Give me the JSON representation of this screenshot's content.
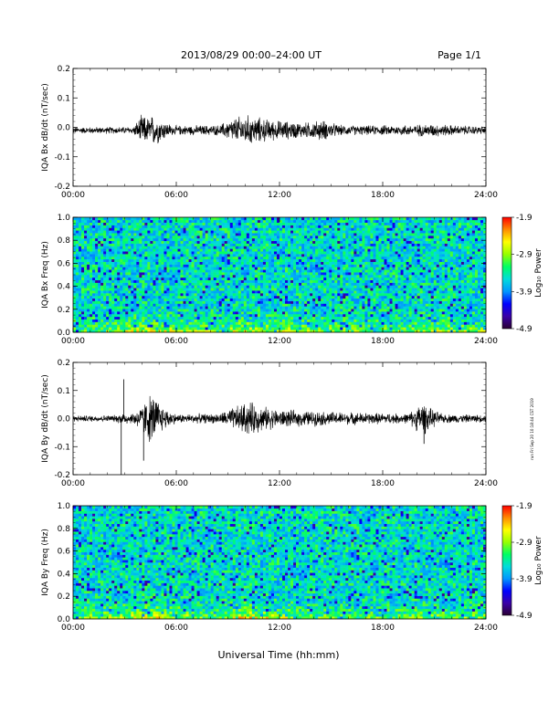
{
  "header": {
    "title": "2013/08/29  00:00–24:00 UT",
    "page": "Page 1/1"
  },
  "x_axis_title": "Universal Time (hh:mm)",
  "timestamp": "run Fri Sep 20 10:18:44 CST 2019",
  "colors": {
    "trace": "#000000",
    "colormap": [
      "#2a0033",
      "#3a00a8",
      "#0000ff",
      "#0096ff",
      "#00dcdc",
      "#00ff64",
      "#96ff00",
      "#ffff00",
      "#ff8c00",
      "#ff0000"
    ]
  },
  "chart_data": [
    {
      "type": "line",
      "ylabel": "IQA Bx dB/dt (nT/sec)",
      "xlim": [
        "00:00",
        "24:00"
      ],
      "x_ticks": [
        "00:00",
        "06:00",
        "12:00",
        "18:00",
        "24:00"
      ],
      "ylim": [
        -0.2,
        0.2
      ],
      "y_ticks": [
        "0.2",
        "0.1",
        "0.0",
        "-0.1",
        "-0.2"
      ],
      "grid": false,
      "envelope": {
        "hours": [
          0,
          3.5,
          4.0,
          4.3,
          4.7,
          5.2,
          5.8,
          8.5,
          9.2,
          10.0,
          10.8,
          11.5,
          12.5,
          13.5,
          14.5,
          15.5,
          17.0,
          19.0,
          21.0,
          22.5,
          24.0
        ],
        "half_width": [
          0.012,
          0.014,
          0.06,
          0.05,
          0.06,
          0.04,
          0.018,
          0.02,
          0.045,
          0.06,
          0.05,
          0.04,
          0.035,
          0.03,
          0.04,
          0.02,
          0.018,
          0.02,
          0.025,
          0.018,
          0.015
        ]
      },
      "baseline": -0.01
    },
    {
      "type": "heatmap",
      "ylabel": "IQA Bx Freq (Hz)",
      "xlim": [
        "00:00",
        "24:00"
      ],
      "x_ticks": [
        "00:00",
        "06:00",
        "12:00",
        "18:00",
        "24:00"
      ],
      "ylim": [
        0.0,
        1.0
      ],
      "y_ticks": [
        "1.0",
        "0.8",
        "0.6",
        "0.4",
        "0.2",
        "0.0"
      ],
      "colorbar": {
        "label": "Log₁₀ Power",
        "range": [
          -4.9,
          -1.9
        ],
        "ticks": [
          "-1.9",
          "-2.9",
          "-3.9",
          "-4.9"
        ]
      },
      "background_log_power": -3.5,
      "low_freq_enhancement": {
        "hours": [
          0,
          4.0,
          5.0,
          8.5,
          10.0,
          11.5,
          14.0,
          18.0,
          20.5,
          24.0
        ],
        "log_power": [
          -3.1,
          -2.6,
          -2.6,
          -3.0,
          -2.5,
          -2.7,
          -2.9,
          -3.0,
          -2.7,
          -2.9
        ]
      }
    },
    {
      "type": "line",
      "ylabel": "IQA By dB/dt (nT/sec)",
      "xlim": [
        "00:00",
        "24:00"
      ],
      "x_ticks": [
        "00:00",
        "06:00",
        "12:00",
        "18:00",
        "24:00"
      ],
      "ylim": [
        -0.2,
        0.2
      ],
      "y_ticks": [
        "0.2",
        "0.1",
        "0.0",
        "-0.1",
        "-0.2"
      ],
      "grid": false,
      "envelope": {
        "hours": [
          0,
          2.5,
          3.0,
          3.3,
          4.0,
          4.4,
          4.8,
          5.2,
          6.0,
          8.5,
          9.5,
          10.2,
          11.0,
          12.0,
          14.0,
          16.0,
          19.5,
          20.3,
          20.8,
          21.5,
          24.0
        ],
        "half_width": [
          0.012,
          0.014,
          0.03,
          0.018,
          0.05,
          0.1,
          0.09,
          0.05,
          0.018,
          0.02,
          0.05,
          0.07,
          0.05,
          0.035,
          0.03,
          0.025,
          0.02,
          0.07,
          0.04,
          0.018,
          0.015
        ]
      },
      "baseline": 0.0,
      "spikes": [
        {
          "hour": 2.8,
          "value": -0.2
        },
        {
          "hour": 4.1,
          "value": -0.15
        },
        {
          "hour": 2.95,
          "value": 0.14
        },
        {
          "hour": 20.4,
          "value": -0.09
        }
      ]
    },
    {
      "type": "heatmap",
      "ylabel": "IQA By Freq (Hz)",
      "xlim": [
        "00:00",
        "24:00"
      ],
      "x_ticks": [
        "00:00",
        "06:00",
        "12:00",
        "18:00",
        "24:00"
      ],
      "ylim": [
        0.0,
        1.0
      ],
      "y_ticks": [
        "1.0",
        "0.8",
        "0.6",
        "0.4",
        "0.2",
        "0.0"
      ],
      "colorbar": {
        "label": "Log₁₀ Power",
        "range": [
          -4.9,
          -1.9
        ],
        "ticks": [
          "-1.9",
          "-2.9",
          "-3.9",
          "-4.9"
        ]
      },
      "background_log_power": -3.5,
      "low_freq_enhancement": {
        "hours": [
          0,
          4.0,
          5.0,
          8.5,
          10.0,
          11.5,
          14.0,
          18.0,
          20.5,
          24.0
        ],
        "log_power": [
          -3.1,
          -2.5,
          -2.5,
          -3.0,
          -2.2,
          -2.6,
          -3.0,
          -3.1,
          -2.9,
          -3.0
        ]
      }
    }
  ]
}
